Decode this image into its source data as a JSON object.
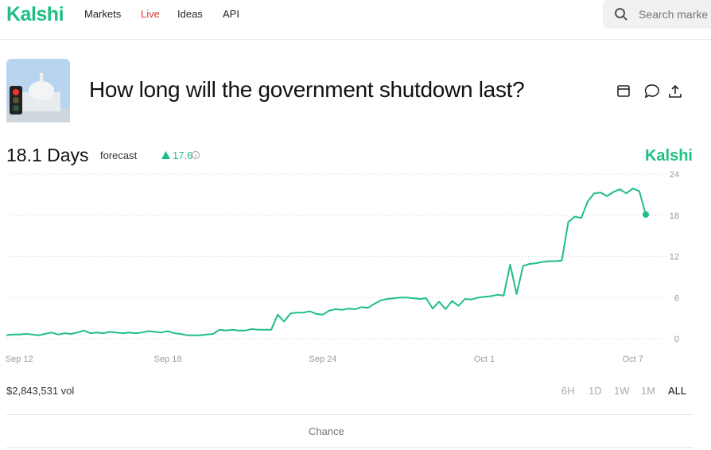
{
  "nav": {
    "logo": "Kalshi",
    "links": [
      "Markets",
      "Live",
      "Ideas",
      "API"
    ],
    "search_placeholder": "Search marke"
  },
  "market": {
    "title": "How long will the government shutdown last?",
    "forecast_value": "18.1 Days",
    "forecast_label": "forecast",
    "change": 17.6,
    "volume": "$2,843,531 vol",
    "ranges": [
      "6H",
      "1D",
      "1W",
      "1M",
      "ALL"
    ],
    "active_range": "ALL",
    "tab": "Chance"
  },
  "chart_data": {
    "type": "line",
    "watermark": "Kalshi",
    "color": "#1fbf83",
    "categories": [
      null,
      null,
      "Sep 12",
      null,
      null,
      null,
      null,
      null,
      null,
      null,
      null,
      null,
      null,
      null,
      null,
      null,
      null,
      null,
      null,
      null,
      null,
      null,
      null,
      null,
      null,
      "Sep 18",
      null,
      null,
      null,
      null,
      null,
      null,
      null,
      null,
      null,
      null,
      null,
      null,
      null,
      null,
      null,
      null,
      null,
      null,
      null,
      null,
      null,
      null,
      null,
      "Sep 24",
      null,
      null,
      null,
      null,
      null,
      null,
      null,
      null,
      null,
      null,
      null,
      null,
      null,
      null,
      null,
      null,
      null,
      null,
      null,
      null,
      null,
      null,
      null,
      null,
      "Oct 1",
      null,
      null,
      null,
      null,
      null,
      null,
      null,
      null,
      null,
      null,
      null,
      null,
      null,
      null,
      null,
      null,
      null,
      null,
      null,
      null,
      null,
      null,
      "Oct 7",
      null,
      null
    ],
    "values": [
      0.5,
      0.6,
      0.6,
      0.7,
      0.6,
      0.5,
      0.7,
      0.9,
      0.6,
      0.8,
      0.7,
      0.9,
      1.2,
      0.8,
      0.9,
      0.8,
      1.0,
      0.9,
      0.8,
      0.9,
      0.8,
      0.9,
      1.1,
      1.0,
      0.9,
      1.1,
      0.8,
      0.7,
      0.5,
      0.5,
      0.5,
      0.6,
      0.7,
      1.3,
      1.2,
      1.3,
      1.2,
      1.2,
      1.4,
      1.3,
      1.3,
      1.3,
      3.5,
      2.5,
      3.7,
      3.8,
      3.8,
      4.0,
      3.6,
      3.5,
      4.1,
      4.3,
      4.2,
      4.4,
      4.3,
      4.6,
      4.5,
      5.1,
      5.6,
      5.8,
      5.9,
      6.0,
      6.0,
      5.9,
      5.8,
      5.9,
      4.4,
      5.4,
      4.3,
      5.5,
      4.8,
      5.8,
      5.7,
      6.0,
      6.1,
      6.2,
      6.4,
      6.3,
      10.8,
      6.5,
      10.6,
      10.9,
      11.0,
      11.2,
      11.3,
      11.3,
      11.4,
      17.0,
      17.8,
      17.6,
      20.0,
      21.2,
      21.3,
      20.8,
      21.4,
      21.8,
      21.2,
      21.9,
      21.5,
      18.1
    ],
    "ylim": [
      0,
      24
    ],
    "yticks": [
      0,
      6,
      12,
      18,
      24
    ],
    "grid": true
  }
}
